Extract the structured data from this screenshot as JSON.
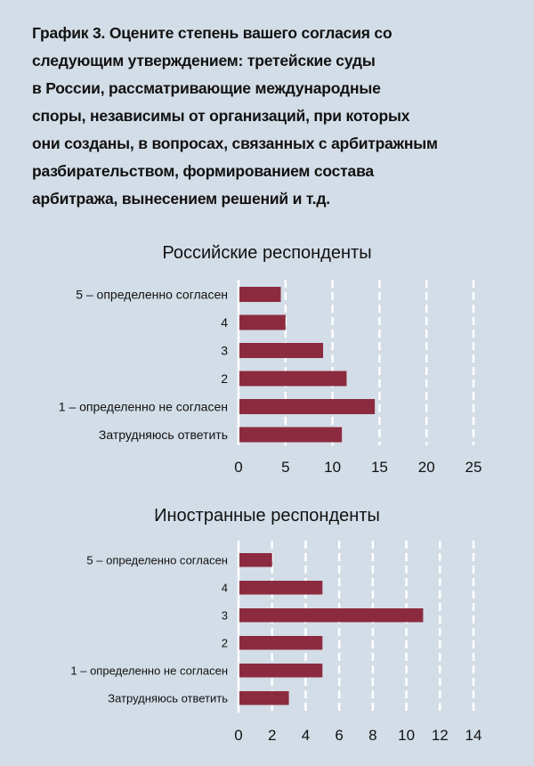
{
  "heading": {
    "lines": [
      "График 3. Оцените степень вашего согласия со",
      "следующим утверждением: третейские суды",
      "в России, рассматривающие международные",
      "споры, независимы от организаций, при которых",
      "они созданы, в вопросах, связанных с арбитражным",
      "разбирательством, формированием состава",
      "арбитража, вынесением решений и т.д."
    ]
  },
  "colors": {
    "bar": "#8c2b3f",
    "background": "#d3dde7",
    "grid": "#ffffff"
  },
  "chart_data": [
    {
      "type": "bar",
      "orientation": "horizontal",
      "title": "Российские респонденты",
      "categories": [
        "5 – определенно согласен",
        "4",
        "3",
        "2",
        "1 – определенно не согласен",
        "Затрудняюсь ответить"
      ],
      "values": [
        4.5,
        5,
        9,
        11.5,
        14.5,
        11
      ],
      "xlim": [
        0,
        25
      ],
      "ticks": [
        0,
        5,
        10,
        15,
        20,
        25
      ],
      "xlabel": "",
      "ylabel": ""
    },
    {
      "type": "bar",
      "orientation": "horizontal",
      "title": "Иностранные респонденты",
      "categories": [
        "5 – определенно согласен",
        "4",
        "3",
        "2",
        "1 – определенно не согласен",
        "Затрудняюсь ответить"
      ],
      "values": [
        2,
        5,
        11,
        5,
        5,
        3
      ],
      "xlim": [
        0,
        14
      ],
      "ticks": [
        0,
        2,
        4,
        6,
        8,
        10,
        12,
        14
      ],
      "xlabel": "",
      "ylabel": ""
    }
  ]
}
